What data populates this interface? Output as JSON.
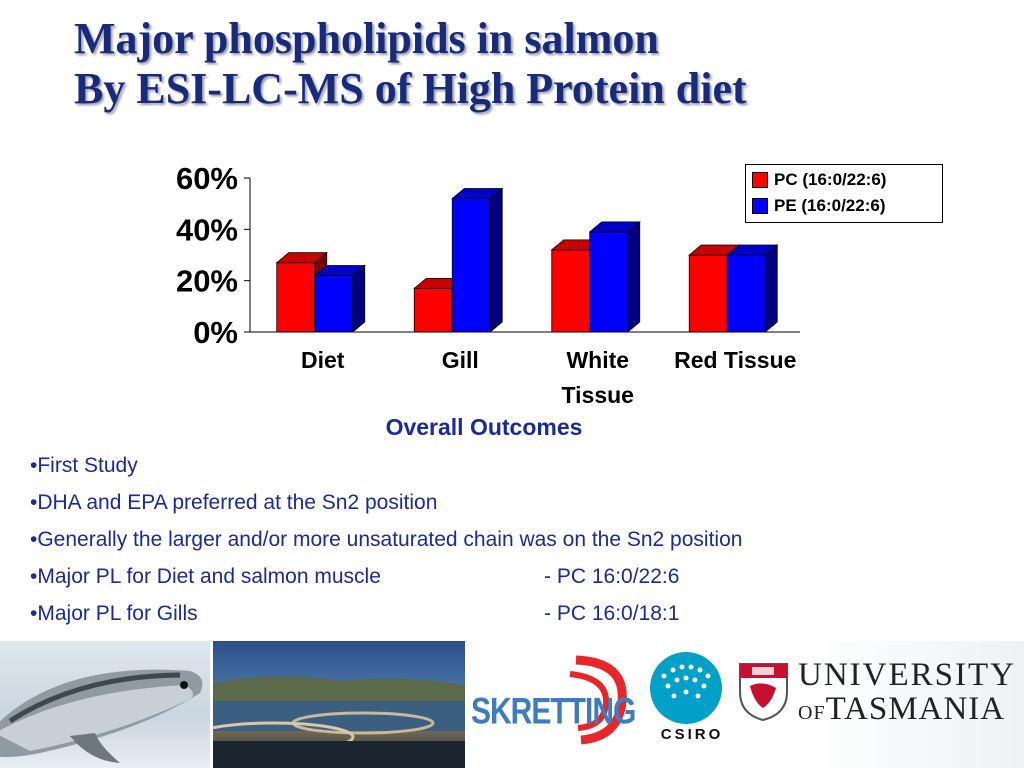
{
  "slide": {
    "title_line1": "Major phospholipids in salmon",
    "title_line2": "By ESI-LC-MS of High Protein diet"
  },
  "chart_data": {
    "type": "bar",
    "style": "3d-clustered",
    "categories": [
      "Diet",
      "Gill",
      "White Tissue",
      "Red Tissue"
    ],
    "series": [
      {
        "name": "PC (16:0/22:6)",
        "color": "#ff0000",
        "values": [
          27,
          17,
          32,
          30
        ]
      },
      {
        "name": "PE (16:0/22:6)",
        "color": "#0000ff",
        "values": [
          22,
          52,
          39,
          30
        ]
      }
    ],
    "yticks": [
      "0%",
      "20%",
      "40%",
      "60%"
    ],
    "ylim": [
      0,
      60
    ],
    "grid": false,
    "legend_position": "top-right"
  },
  "outcomes": {
    "heading": "Overall Outcomes",
    "bullets": [
      {
        "text": "•First Study"
      },
      {
        "text": "•DHA and EPA preferred at the Sn2 position"
      },
      {
        "text": "•Generally the larger and/or more unsaturated chain was on the Sn2 position"
      },
      {
        "text": "•Major PL for Diet and salmon muscle",
        "detail": "- PC 16:0/22:6"
      },
      {
        "text": "•Major PL for Gills",
        "detail": "- PC 16:0/18:1"
      }
    ]
  },
  "logos": {
    "skretting": "SKRETTING",
    "csiro": "CSIRO",
    "university_line1": "UNIVERSITY",
    "university_of": "OF",
    "university_line2": "TASMANIA"
  }
}
